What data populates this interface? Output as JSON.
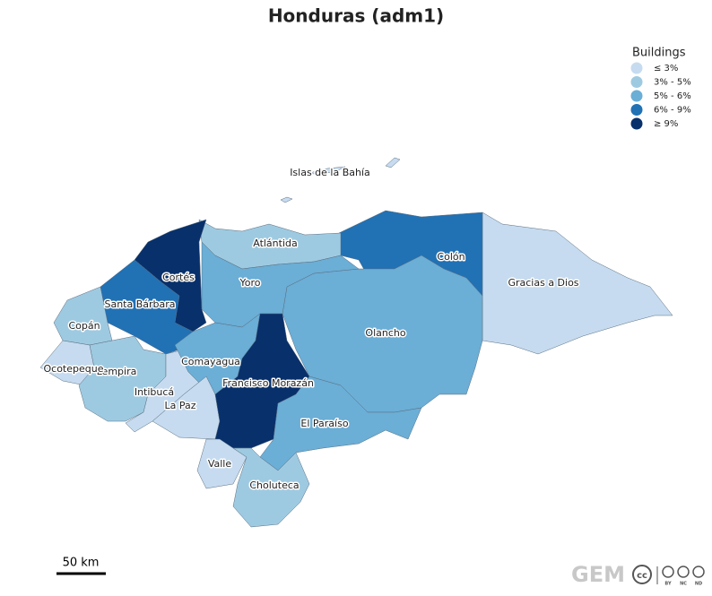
{
  "header": {
    "title": "Honduras (adm1)"
  },
  "legend": {
    "title": "Buildings",
    "items": [
      {
        "label": "≤ 3%",
        "color": "#c6dbef"
      },
      {
        "label": "3% - 5%",
        "color": "#9ecae1"
      },
      {
        "label": "5% - 6%",
        "color": "#6baed6"
      },
      {
        "label": "6% - 9%",
        "color": "#2171b5"
      },
      {
        "label": "≥ 9%",
        "color": "#08306b"
      }
    ]
  },
  "regions": [
    {
      "name": "Gracias a Dios",
      "color": "#c6dbef"
    },
    {
      "name": "Colón",
      "color": "#2171b5"
    },
    {
      "name": "Atlántida",
      "color": "#9ecae1"
    },
    {
      "name": "Olancho",
      "color": "#6baed6"
    },
    {
      "name": "Yoro",
      "color": "#6baed6"
    },
    {
      "name": "Cortés",
      "color": "#08306b"
    },
    {
      "name": "Santa Bárbara",
      "color": "#2171b5"
    },
    {
      "name": "Copán",
      "color": "#9ecae1"
    },
    {
      "name": "Ocotepeque",
      "color": "#c6dbef"
    },
    {
      "name": "Lempira",
      "color": "#9ecae1"
    },
    {
      "name": "Intibucá",
      "color": "#c6dbef"
    },
    {
      "name": "Comayagua",
      "color": "#6baed6"
    },
    {
      "name": "La Paz",
      "color": "#c6dbef"
    },
    {
      "name": "Francisco Morazán",
      "color": "#08306b"
    },
    {
      "name": "El Paraíso",
      "color": "#6baed6"
    },
    {
      "name": "Valle",
      "color": "#c6dbef"
    },
    {
      "name": "Choluteca",
      "color": "#9ecae1"
    },
    {
      "name": "Islas de la Bahía",
      "color": "#c6dbef"
    }
  ],
  "scale_bar": {
    "label": "50 km"
  },
  "logo": {
    "text": "GEM"
  },
  "license": {
    "badge": "cc",
    "terms": [
      "BY",
      "NC",
      "ND"
    ]
  }
}
